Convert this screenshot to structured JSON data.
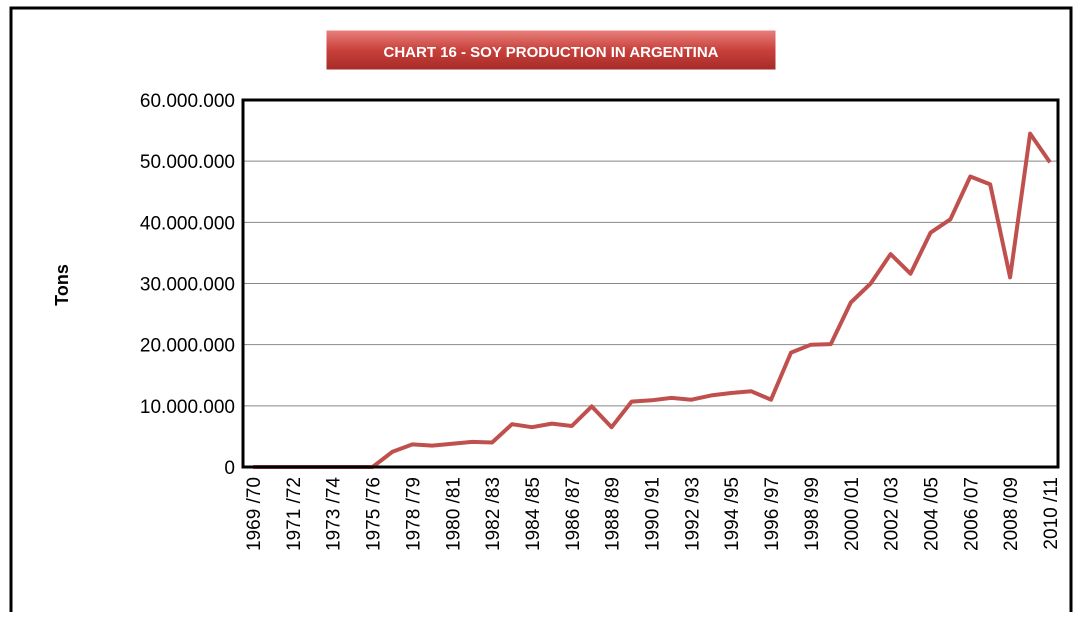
{
  "chart_data": {
    "type": "line",
    "title": "CHART  16 - SOY PRODUCTION IN ARGENTINA",
    "ylabel": "Tons",
    "categories": [
      "1969 /70",
      null,
      "1971 /72",
      null,
      "1973 /74",
      null,
      "1975 /76",
      null,
      "1978 /79",
      null,
      "1980 /81",
      null,
      "1982 /83",
      null,
      "1984 /85",
      null,
      "1986 /87",
      null,
      "1988 /89",
      null,
      "1990 /91",
      null,
      "1992 /93",
      null,
      "1994 /95",
      null,
      "1996 /97",
      null,
      "1998 /99",
      null,
      "2000 /01",
      null,
      "2002 /03",
      null,
      "2004 /05",
      null,
      "2006 /07",
      null,
      "2008 /09",
      null,
      "2010 /11"
    ],
    "series": [
      {
        "name": "Tons",
        "color": "#c0504d",
        "values": [
          0,
          0,
          0,
          0,
          0,
          0,
          0,
          2500000,
          3700000,
          3500000,
          3800000,
          4100000,
          4000000,
          7000000,
          6500000,
          7100000,
          6700000,
          9900000,
          6500000,
          10700000,
          10900000,
          11300000,
          11000000,
          11700000,
          12100000,
          12400000,
          11000000,
          18700000,
          20000000,
          20100000,
          26900000,
          30000000,
          34800000,
          31600000,
          38300000,
          40500000,
          47500000,
          46200000,
          31000000,
          54500000,
          49800000
        ]
      }
    ],
    "ylim": [
      0,
      60000000
    ],
    "yticks": [
      0,
      {
        "value": 10000000,
        "label": "10.000.000"
      },
      {
        "value": 20000000,
        "label": "20.000.000"
      },
      {
        "value": 30000000,
        "label": "30.000.000"
      },
      {
        "value": 40000000,
        "label": "40.000.000"
      },
      {
        "value": 50000000,
        "label": "50.000.000"
      },
      {
        "value": 60000000,
        "label": "60.000.000"
      }
    ],
    "grid": true
  }
}
